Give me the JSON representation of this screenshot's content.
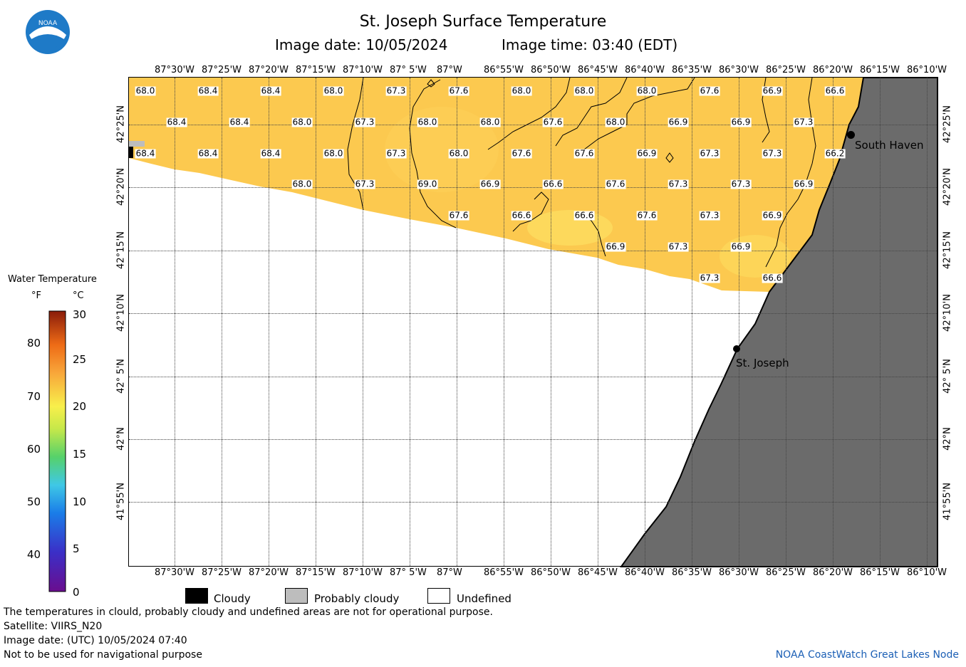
{
  "title": "St. Joseph Surface Temperature",
  "image_date_label": "Image date: 10/05/2024",
  "image_time_label": "Image time: 03:40 (EDT)",
  "logo_text": "NOAA",
  "lon_labels": [
    "87°30'W",
    "87°25'W",
    "87°20'W",
    "87°15'W",
    "87°10'W",
    "87° 5'W",
    "87°W",
    "86°55'W",
    "86°50'W",
    "86°45'W",
    "86°40'W",
    "86°35'W",
    "86°30'W",
    "86°25'W",
    "86°20'W",
    "86°15'W",
    "86°10'W"
  ],
  "lat_labels": [
    "42°25'N",
    "42°20'N",
    "42°15'N",
    "42°10'N",
    "42° 5'N",
    "42°N",
    "41°55'N"
  ],
  "colorbar": {
    "title": "Water Temperature",
    "unit_f": "°F",
    "unit_c": "°C",
    "f_ticks": [
      "80",
      "70",
      "60",
      "50",
      "40"
    ],
    "c_ticks": [
      "30",
      "25",
      "20",
      "15",
      "10",
      "5",
      "0"
    ]
  },
  "temperature_labels": [
    [
      "68.0",
      "68.4",
      "68.4",
      "68.0",
      "67.3",
      "67.6",
      "68.0",
      "68.0",
      "68.0",
      "67.6",
      "66.9",
      "66.6"
    ],
    [
      "68.4",
      "68.4",
      "68.0",
      "67.3",
      "68.0",
      "68.0",
      "67.6",
      "68.0",
      "66.9",
      "66.9",
      "67.3"
    ],
    [
      "68.4",
      "68.4",
      "68.4",
      "68.0",
      "67.3",
      "68.0",
      "67.6",
      "67.6",
      "66.9",
      "67.3",
      "67.3",
      "66.2"
    ],
    [
      "68.0",
      "67.3",
      "69.0",
      "66.9",
      "66.6",
      "67.6",
      "67.3",
      "67.3",
      "66.9"
    ],
    [
      "67.6",
      "66.6",
      "66.6",
      "67.6",
      "67.3",
      "66.9"
    ],
    [
      "66.9",
      "67.3",
      "66.9"
    ],
    [
      "67.3",
      "66.6"
    ]
  ],
  "places": {
    "south_haven": "South Haven",
    "st_joseph": "St. Joseph"
  },
  "legend": {
    "cloudy": "Cloudy",
    "probably_cloudy": "Probably cloudy",
    "undefined": "Undefined"
  },
  "footer": {
    "disclaimer": "The temperatures in clould, probably cloudy and undefined areas are not for operational purpose.",
    "satellite": "Satellite: VIIRS_N20",
    "utc_date": "Image date: (UTC) 10/05/2024  07:40",
    "nav": "Not to be used for navigational purpose",
    "credit": "NOAA CoastWatch Great Lakes Node"
  },
  "colors": {
    "water": "#fcc94f",
    "land": "#6b6b6b",
    "cloudy": "#000000",
    "probably_cloudy": "#bdbdbd",
    "undefined": "#ffffff",
    "credit_text": "#1b5fb5"
  }
}
